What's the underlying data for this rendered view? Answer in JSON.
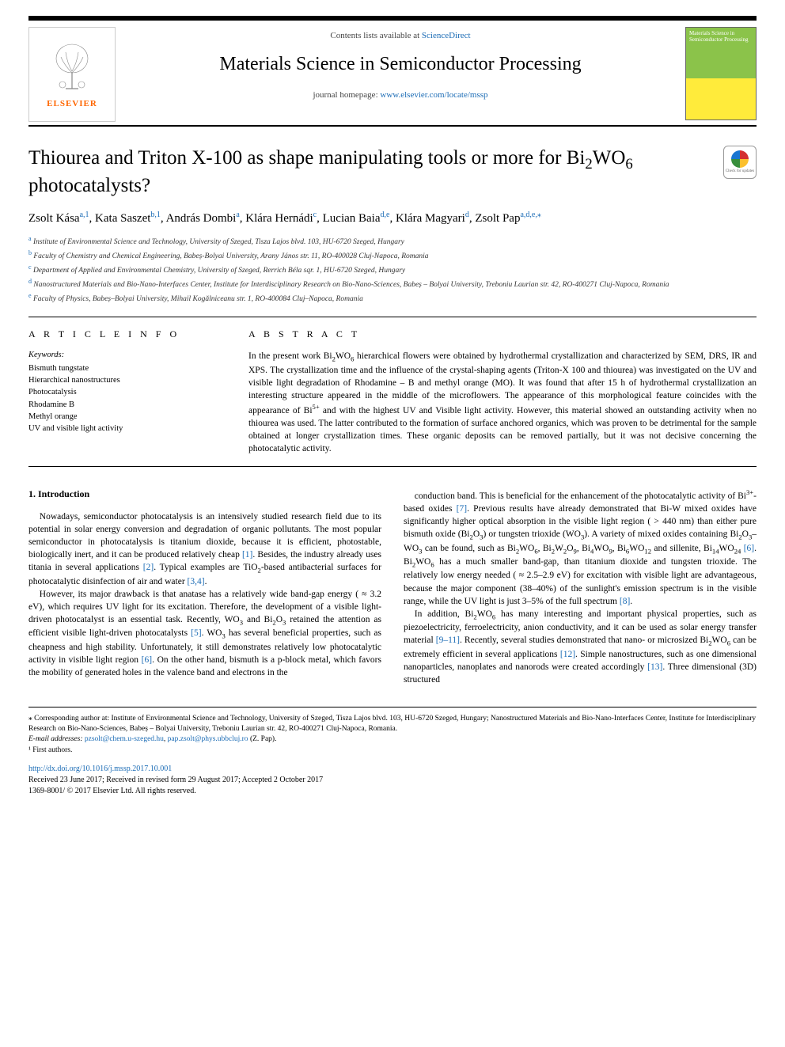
{
  "header": {
    "contents_prefix": "Contents lists available at ",
    "contents_link": "ScienceDirect",
    "journal_title": "Materials Science in Semiconductor Processing",
    "homepage_prefix": "journal homepage: ",
    "homepage_link": "www.elsevier.com/locate/mssp",
    "elsevier_label": "ELSEVIER",
    "cover_title": "Materials Science in Semiconductor Processing",
    "crossmark_text": "Check for updates"
  },
  "article": {
    "title_html": "Thiourea and Triton X-100 as shape manipulating tools or more for Bi<sub>2</sub>WO<sub>6</sub> photocatalysts?",
    "authors_html": "Zsolt Kása<span class='affil-link'>a,1</span>, Kata Saszet<span class='affil-link'>b,1</span>, András Dombi<span class='affil-link'>a</span>, Klára Hernádi<span class='affil-link'>c</span>, Lucian Baia<span class='affil-link'>d,e</span>, Klára Magyari<span class='affil-link'>d</span>, Zsolt Pap<span class='affil-link'>a,d,e,</span><span class='affil-link'>⁎</span>",
    "affiliations": [
      {
        "letter": "a",
        "text": "Institute of Environmental Science and Technology, University of Szeged, Tisza Lajos blvd. 103, HU-6720 Szeged, Hungary"
      },
      {
        "letter": "b",
        "text": "Faculty of Chemistry and Chemical Engineering, Babeș-Bolyai University, Arany János str. 11, RO-400028 Cluj-Napoca, Romania"
      },
      {
        "letter": "c",
        "text": "Department of Applied and Environmental Chemistry, University of Szeged, Rerrich Béla sqr. 1, HU-6720 Szeged, Hungary"
      },
      {
        "letter": "d",
        "text": "Nanostructured Materials and Bio-Nano-Interfaces Center, Institute for Interdisciplinary Research on Bio-Nano-Sciences, Babeș – Bolyai University, Treboniu Laurian str. 42, RO-400271 Cluj-Napoca, Romania"
      },
      {
        "letter": "e",
        "text": "Faculty of Physics, Babeș–Bolyai University, Mihail Kogălniceanu str. 1, RO-400084 Cluj–Napoca, Romania"
      }
    ]
  },
  "info": {
    "heading": "A R T I C L E  I N F O",
    "keywords_label": "Keywords:",
    "keywords": [
      "Bismuth tungstate",
      "Hierarchical nanostructures",
      "Photocatalysis",
      "Rhodamine B",
      "Methyl orange",
      "UV and visible light activity"
    ]
  },
  "abstract": {
    "heading": "A B S T R A C T",
    "text_html": "In the present work Bi<sub>2</sub>WO<sub>6</sub> hierarchical flowers were obtained by hydrothermal crystallization and characterized by SEM, DRS, IR and XPS. The crystallization time and the influence of the crystal-shaping agents (Triton-X 100 and thiourea) was investigated on the UV and visible light degradation of Rhodamine – B and methyl orange (MO). It was found that after 15 h of hydrothermal crystallization an interesting structure appeared in the middle of the microflowers. The appearance of this morphological feature coincides with the appearance of Bi<sup>5+</sup> and with the highest UV and Visible light activity. However, this material showed an outstanding activity when no thiourea was used. The latter contributed to the formation of surface anchored organics, which was proven to be detrimental for the sample obtained at longer crystallization times. These organic deposits can be removed partially, but it was not decisive concerning the photocatalytic activity."
  },
  "body": {
    "section_heading": "1. Introduction",
    "col1_paragraphs_html": [
      "Nowadays, semiconductor photocatalysis is an intensively studied research field due to its potential in solar energy conversion and degradation of organic pollutants. The most popular semiconductor in photocatalysis is titanium dioxide, because it is efficient, photostable, biologically inert, and it can be produced relatively cheap <a class='ref-link' data-name='ref-1' data-interactable='true'>[1]</a>. Besides, the industry already uses titania in several applications <a class='ref-link' data-name='ref-2' data-interactable='true'>[2]</a>. Typical examples are TiO<sub>2</sub>-based antibacterial surfaces for photocatalytic disinfection of air and water <a class='ref-link' data-name='ref-3-4' data-interactable='true'>[3,4]</a>.",
      "However, its major drawback is that anatase has a relatively wide band-gap energy ( ≈ 3.2 eV), which requires UV light for its excitation. Therefore, the development of a visible light-driven photocatalyst is an essential task. Recently, WO<sub>3</sub> and Bi<sub>2</sub>O<sub>3</sub> retained the attention as efficient visible light-driven photocatalysts <a class='ref-link' data-name='ref-5' data-interactable='true'>[5]</a>. WO<sub>3</sub> has several beneficial properties, such as cheapness and high stability. Unfortunately, it still demonstrates relatively low photocatalytic activity in visible light region <a class='ref-link' data-name='ref-6' data-interactable='true'>[6]</a>. On the other hand, bismuth is a p-block metal, which favors the mobility of generated holes in the valence band and electrons in the"
    ],
    "col2_paragraphs_html": [
      "conduction band. This is beneficial for the enhancement of the photocatalytic activity of Bi<sup>3+</sup>-based oxides <a class='ref-link' data-name='ref-7' data-interactable='true'>[7]</a>. Previous results have already demonstrated that Bi-W mixed oxides have significantly higher optical absorption in the visible light region ( > 440 nm) than either pure bismuth oxide (Bi<sub>2</sub>O<sub>3</sub>) or tungsten trioxide (WO<sub>3</sub>). A variety of mixed oxides containing Bi<sub>2</sub>O<sub>3</sub>–WO<sub>3</sub> can be found, such as Bi<sub>2</sub>WO<sub>6</sub>, Bi<sub>2</sub>W<sub>2</sub>O<sub>9</sub>, Bi<sub>4</sub>WO<sub>9</sub>, Bi<sub>6</sub>WO<sub>12</sub> and sillenite, Bi<sub>14</sub>WO<sub>24</sub> <a class='ref-link' data-name='ref-6b' data-interactable='true'>[6]</a>. Bi<sub>2</sub>WO<sub>6</sub> has a much smaller band-gap, than titanium dioxide and tungsten trioxide. The relatively low energy needed ( ≈ 2.5–2.9 eV) for excitation with visible light are advantageous, because the major component (38–40%) of the sunlight's emission spectrum is in the visible range, while the UV light is just 3–5% of the full spectrum <a class='ref-link' data-name='ref-8' data-interactable='true'>[8]</a>.",
      "In addition, Bi<sub>2</sub>WO<sub>6</sub> has many interesting and important physical properties, such as piezoelectricity, ferroelectricity, anion conductivity, and it can be used as solar energy transfer material <a class='ref-link' data-name='ref-9-11' data-interactable='true'>[9–11]</a>. Recently, several studies demonstrated that nano- or microsized Bi<sub>2</sub>WO<sub>6</sub> can be extremely efficient in several applications <a class='ref-link' data-name='ref-12' data-interactable='true'>[12]</a>. Simple nanostructures, such as one dimensional nanoparticles, nanoplates and nanorods were created accordingly <a class='ref-link' data-name='ref-13' data-interactable='true'>[13]</a>. Three dimensional (3D) structured"
    ]
  },
  "footer": {
    "corr_html": "⁎ Corresponding author at: Institute of Environmental Science and Technology, University of Szeged, Tisza Lajos blvd. 103, HU-6720 Szeged, Hungary; Nanostructured Materials and Bio-Nano-Interfaces Center, Institute for Interdisciplinary Research on Bio-Nano-Sciences, Babeș – Bolyai University, Treboniu Laurian str. 42, RO-400271 Cluj-Napoca, Romania.",
    "email_prefix": "E-mail addresses: ",
    "email1": "pzsolt@chem.u-szeged.hu",
    "email_sep": ", ",
    "email2": "pap.zsolt@phys.ubbcluj.ro",
    "email_suffix": " (Z. Pap).",
    "first_authors": "¹ First authors.",
    "doi_link": "http://dx.doi.org/10.1016/j.mssp.2017.10.001",
    "received": "Received 23 June 2017; Received in revised form 29 August 2017; Accepted 2 October 2017",
    "copyright": "1369-8001/ © 2017 Elsevier Ltd. All rights reserved."
  },
  "colors": {
    "link": "#1a6bb5",
    "elsevier_orange": "#ff6600",
    "black": "#000000"
  }
}
